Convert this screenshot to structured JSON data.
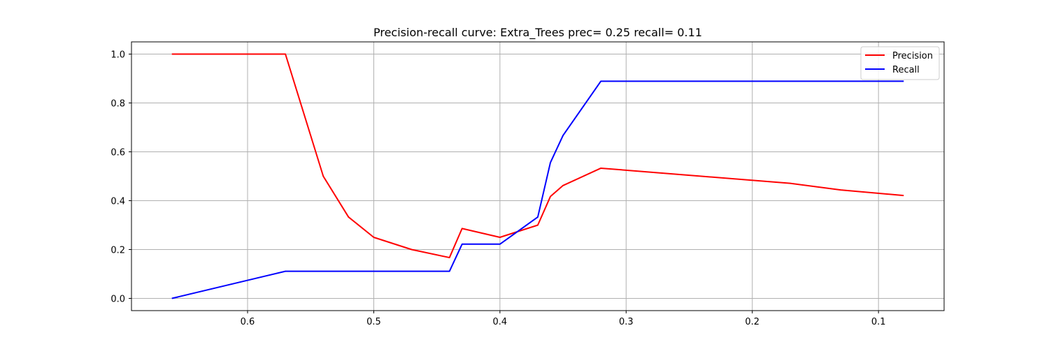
{
  "chart_data": {
    "type": "line",
    "title": "Precision-recall curve: Extra_Trees prec= 0.25 recall= 0.11",
    "xlabel": "",
    "ylabel": "",
    "x_inverted": true,
    "xlim": [
      0.692,
      0.048
    ],
    "ylim": [
      -0.05,
      1.05
    ],
    "x_ticks": [
      0.6,
      0.5,
      0.4,
      0.3,
      0.2,
      0.1
    ],
    "x_tick_labels": [
      "0.6",
      "0.5",
      "0.4",
      "0.3",
      "0.2",
      "0.1"
    ],
    "y_ticks": [
      0.0,
      0.2,
      0.4,
      0.6,
      0.8,
      1.0
    ],
    "y_tick_labels": [
      "0.0",
      "0.2",
      "0.4",
      "0.6",
      "0.8",
      "1.0"
    ],
    "grid": true,
    "legend_position": "top-right",
    "series": [
      {
        "name": "Precision",
        "color": "#ff0000",
        "x": [
          0.66,
          0.57,
          0.54,
          0.52,
          0.5,
          0.47,
          0.44,
          0.43,
          0.4,
          0.37,
          0.36,
          0.35,
          0.32,
          0.17,
          0.13,
          0.08
        ],
        "y": [
          1.0,
          1.0,
          0.5,
          0.333,
          0.25,
          0.2,
          0.167,
          0.286,
          0.25,
          0.3,
          0.417,
          0.462,
          0.533,
          0.471,
          0.444,
          0.421
        ]
      },
      {
        "name": "Recall",
        "color": "#0000ff",
        "x": [
          0.66,
          0.57,
          0.44,
          0.43,
          0.4,
          0.37,
          0.36,
          0.35,
          0.32,
          0.08
        ],
        "y": [
          0.0,
          0.111,
          0.111,
          0.222,
          0.222,
          0.333,
          0.556,
          0.667,
          0.889,
          0.889
        ]
      }
    ]
  }
}
